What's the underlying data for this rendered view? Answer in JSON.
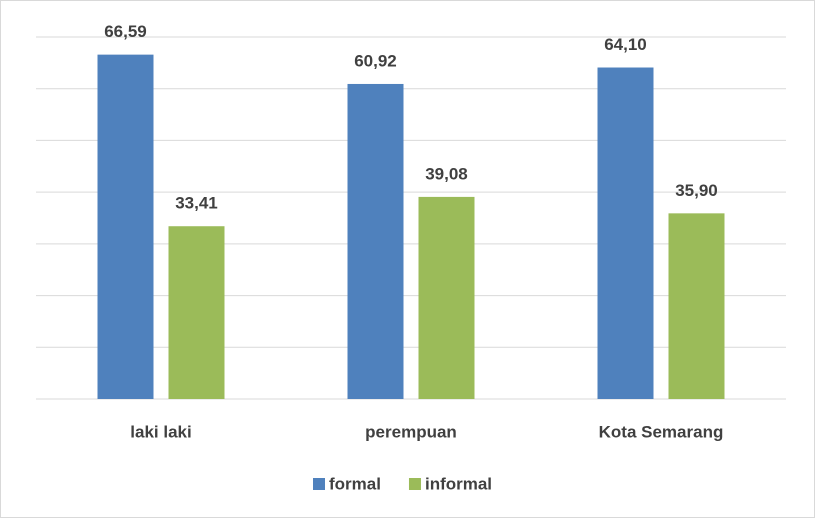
{
  "chart_data": {
    "type": "bar",
    "categories": [
      "laki laki",
      "perempuan",
      "Kota Semarang"
    ],
    "series": [
      {
        "name": "formal",
        "color": "#4f81bd",
        "values": [
          66.59,
          60.92,
          64.1
        ],
        "value_labels": [
          "66,59",
          "60,92",
          "64,10"
        ]
      },
      {
        "name": "informal",
        "color": "#9bbb59",
        "values": [
          33.41,
          39.08,
          35.9
        ],
        "value_labels": [
          "33,41",
          "39,08",
          "35,90"
        ]
      }
    ],
    "ylim": [
      0,
      70
    ],
    "yticks": [
      0,
      10,
      20,
      30,
      40,
      50,
      60,
      70
    ],
    "grid": true,
    "legend": "bottom"
  }
}
